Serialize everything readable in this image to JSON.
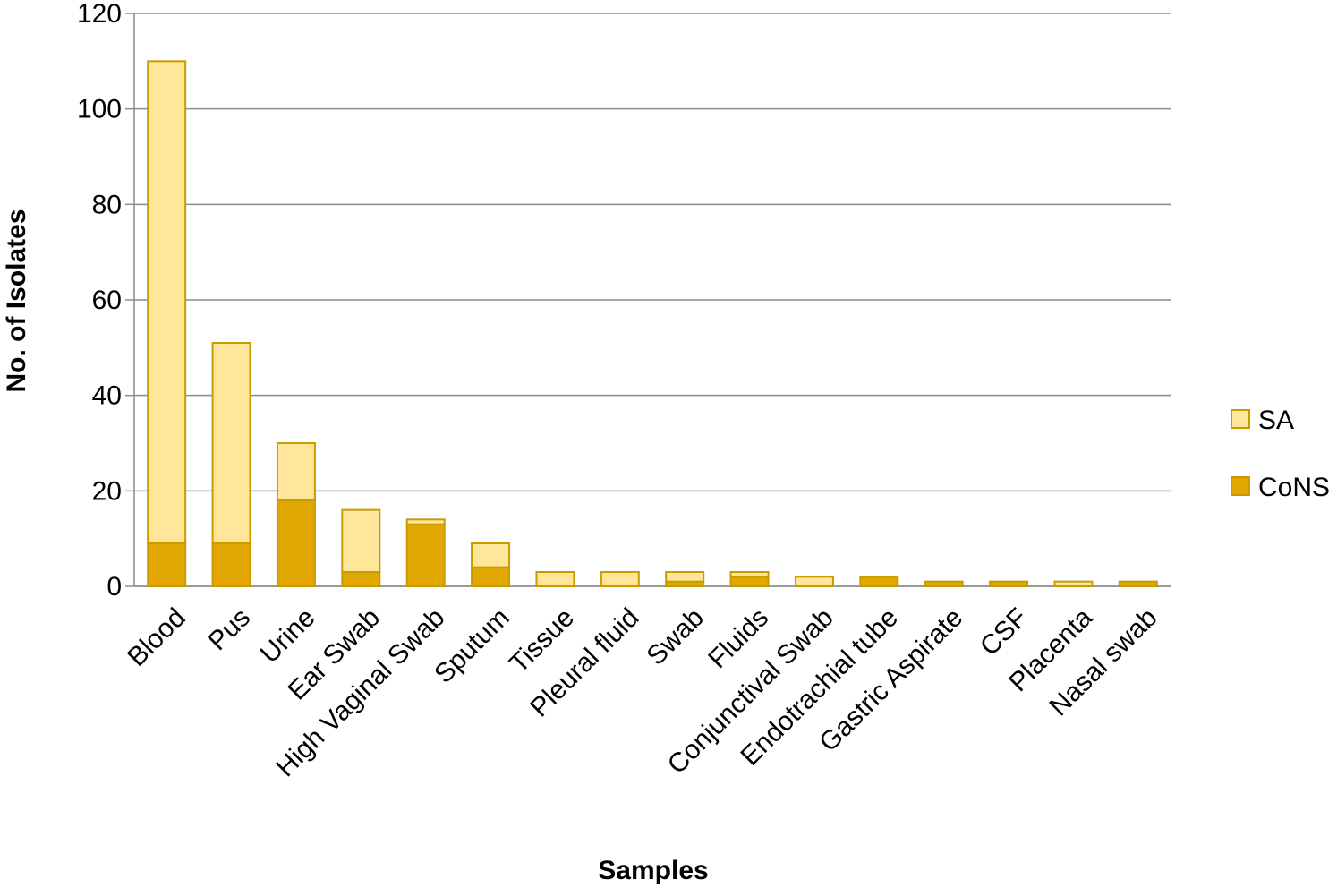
{
  "chart_data": {
    "type": "bar",
    "stacked": true,
    "title": "",
    "xlabel": "Samples",
    "ylabel": "No. of Isolates",
    "ylim": [
      0,
      120
    ],
    "yticks": [
      0,
      20,
      40,
      60,
      80,
      100,
      120
    ],
    "grid": true,
    "legend_position": "right",
    "categories": [
      "Blood",
      "Pus",
      "Urine",
      "Ear Swab",
      "High Vaginal Swab",
      "Sputum",
      "Tissue",
      "Pleural fluid",
      "Swab",
      "Fluids",
      "Conjunctival Swab",
      "Endotrachial tube",
      "Gastric Aspirate",
      "CSF",
      "Placenta",
      "Nasal swab"
    ],
    "series": [
      {
        "name": "CoNS",
        "color": "#e0a800",
        "values": [
          9,
          9,
          18,
          3,
          13,
          4,
          0,
          0,
          1,
          2,
          0,
          2,
          1,
          1,
          0,
          1
        ]
      },
      {
        "name": "SA",
        "color": "#ffe699",
        "values": [
          101,
          42,
          12,
          13,
          1,
          5,
          3,
          3,
          2,
          1,
          2,
          0,
          0,
          0,
          1,
          0
        ]
      }
    ],
    "bar_edge_color": "#c89b00"
  }
}
